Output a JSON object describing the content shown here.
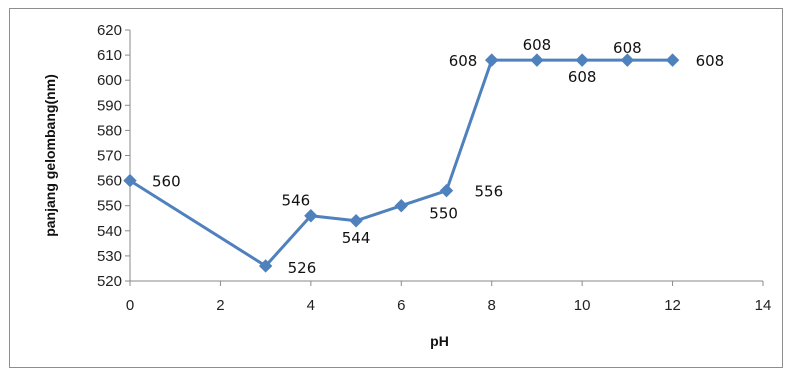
{
  "chart_data": {
    "type": "line",
    "title": "",
    "xlabel": "pH",
    "ylabel": "panjang  gelombang(nm)",
    "xlim": [
      0,
      14
    ],
    "ylim": [
      520,
      620
    ],
    "x_ticks": [
      0,
      2,
      4,
      6,
      8,
      10,
      12,
      14
    ],
    "y_ticks": [
      520,
      530,
      540,
      550,
      560,
      570,
      580,
      590,
      600,
      610,
      620
    ],
    "grid": false,
    "legend": "none",
    "series": [
      {
        "color": "#4f81bd",
        "marker": "diamond",
        "x": [
          0,
          3,
          4,
          5,
          6,
          7,
          8,
          9,
          10,
          11,
          12
        ],
        "values": [
          560,
          526,
          546,
          544,
          550,
          556,
          608,
          608,
          608,
          608,
          608
        ],
        "labels": [
          "560",
          "526",
          "546",
          "544",
          "550",
          "556",
          "608",
          "608",
          "608",
          "608",
          "608"
        ]
      }
    ]
  }
}
